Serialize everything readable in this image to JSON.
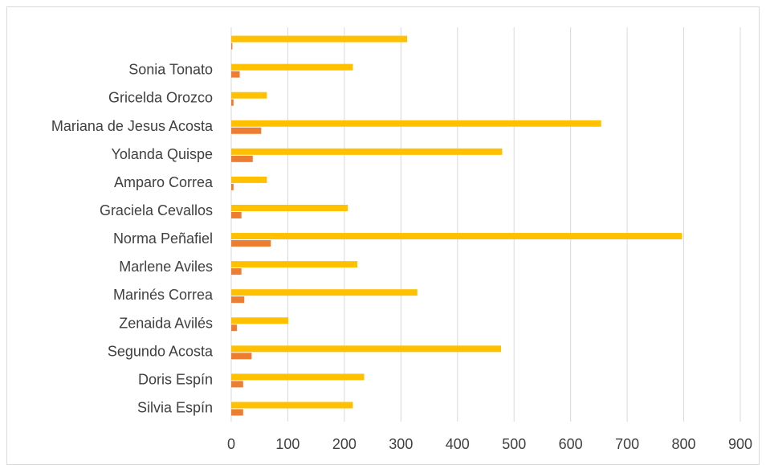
{
  "chart_data": {
    "type": "bar",
    "orientation": "horizontal",
    "categories": [
      "Silvia Espín",
      "Doris Espín",
      "Segundo Acosta",
      "Zenaida Avilés",
      "Marinés Correa",
      "Marlene Aviles",
      "Norma Peñafiel",
      "Graciela Cevallos",
      "Amparo Correa",
      "Yolanda Quispe",
      "Mariana de Jesus Acosta",
      "Gricelda Orozco",
      "Sonia Tonato",
      ""
    ],
    "series": [
      {
        "color": "#ffc000",
        "values": [
          215,
          235,
          477,
          101,
          329,
          223,
          797,
          206,
          63,
          479,
          654,
          63,
          215,
          311
        ]
      },
      {
        "color": "#ed7d31",
        "values": [
          21,
          21,
          36,
          10,
          23,
          18,
          70,
          18,
          4,
          38,
          53,
          4,
          15,
          2
        ]
      }
    ],
    "xlim": [
      0,
      900
    ],
    "xticks": [
      "0",
      "100",
      "200",
      "300",
      "400",
      "500",
      "600",
      "700",
      "800",
      "900"
    ],
    "grid": true,
    "legend": "none"
  }
}
